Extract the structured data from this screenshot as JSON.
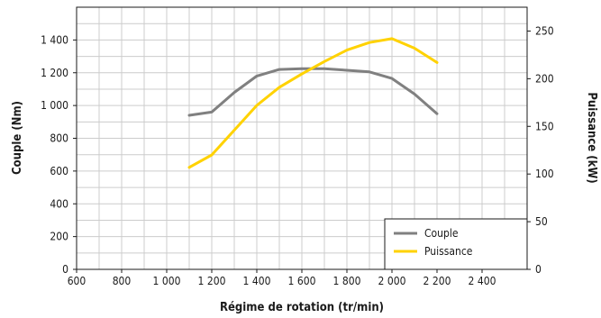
{
  "chart_data": {
    "type": "line",
    "xlabel": "Régime de rotation (tr/min)",
    "ylabel_left": "Couple (Nm)",
    "ylabel_right": "Puissance (kW)",
    "xlim": [
      600,
      2600
    ],
    "ylim_left": [
      0,
      1600
    ],
    "ylim_right": [
      0,
      275
    ],
    "x_ticks": [
      600,
      800,
      1000,
      1200,
      1400,
      1600,
      1800,
      2000,
      2200,
      2400
    ],
    "x_tick_labels": [
      "600",
      "800",
      "1 000",
      "1 200",
      "1 400",
      "1 600",
      "1 800",
      "2 000",
      "2 200",
      "2 400"
    ],
    "y_left_ticks": [
      0,
      200,
      400,
      600,
      800,
      1000,
      1200,
      1400
    ],
    "y_left_tick_labels": [
      "0",
      "200",
      "400",
      "600",
      "800",
      "1 000",
      "1 200",
      "1 400"
    ],
    "y_right_ticks": [
      0,
      50,
      100,
      150,
      200,
      250
    ],
    "y_right_tick_labels": [
      "0",
      "50",
      "100",
      "150",
      "200",
      "250"
    ],
    "grid": true,
    "legend_position": "bottom-right",
    "series": [
      {
        "name": "Couple",
        "axis": "left",
        "color": "#808080",
        "x": [
          1100,
          1200,
          1300,
          1400,
          1500,
          1600,
          1700,
          1800,
          1900,
          2000,
          2100,
          2200
        ],
        "y": [
          940,
          960,
          1080,
          1180,
          1220,
          1225,
          1225,
          1215,
          1205,
          1165,
          1070,
          950
        ]
      },
      {
        "name": "Puissance",
        "axis": "right",
        "color": "#ffd200",
        "x": [
          1100,
          1200,
          1300,
          1400,
          1500,
          1600,
          1700,
          1800,
          1900,
          2000,
          2100,
          2200
        ],
        "y": [
          107,
          120,
          146,
          172,
          191,
          205,
          218,
          230,
          238,
          242,
          232,
          217
        ]
      }
    ]
  }
}
